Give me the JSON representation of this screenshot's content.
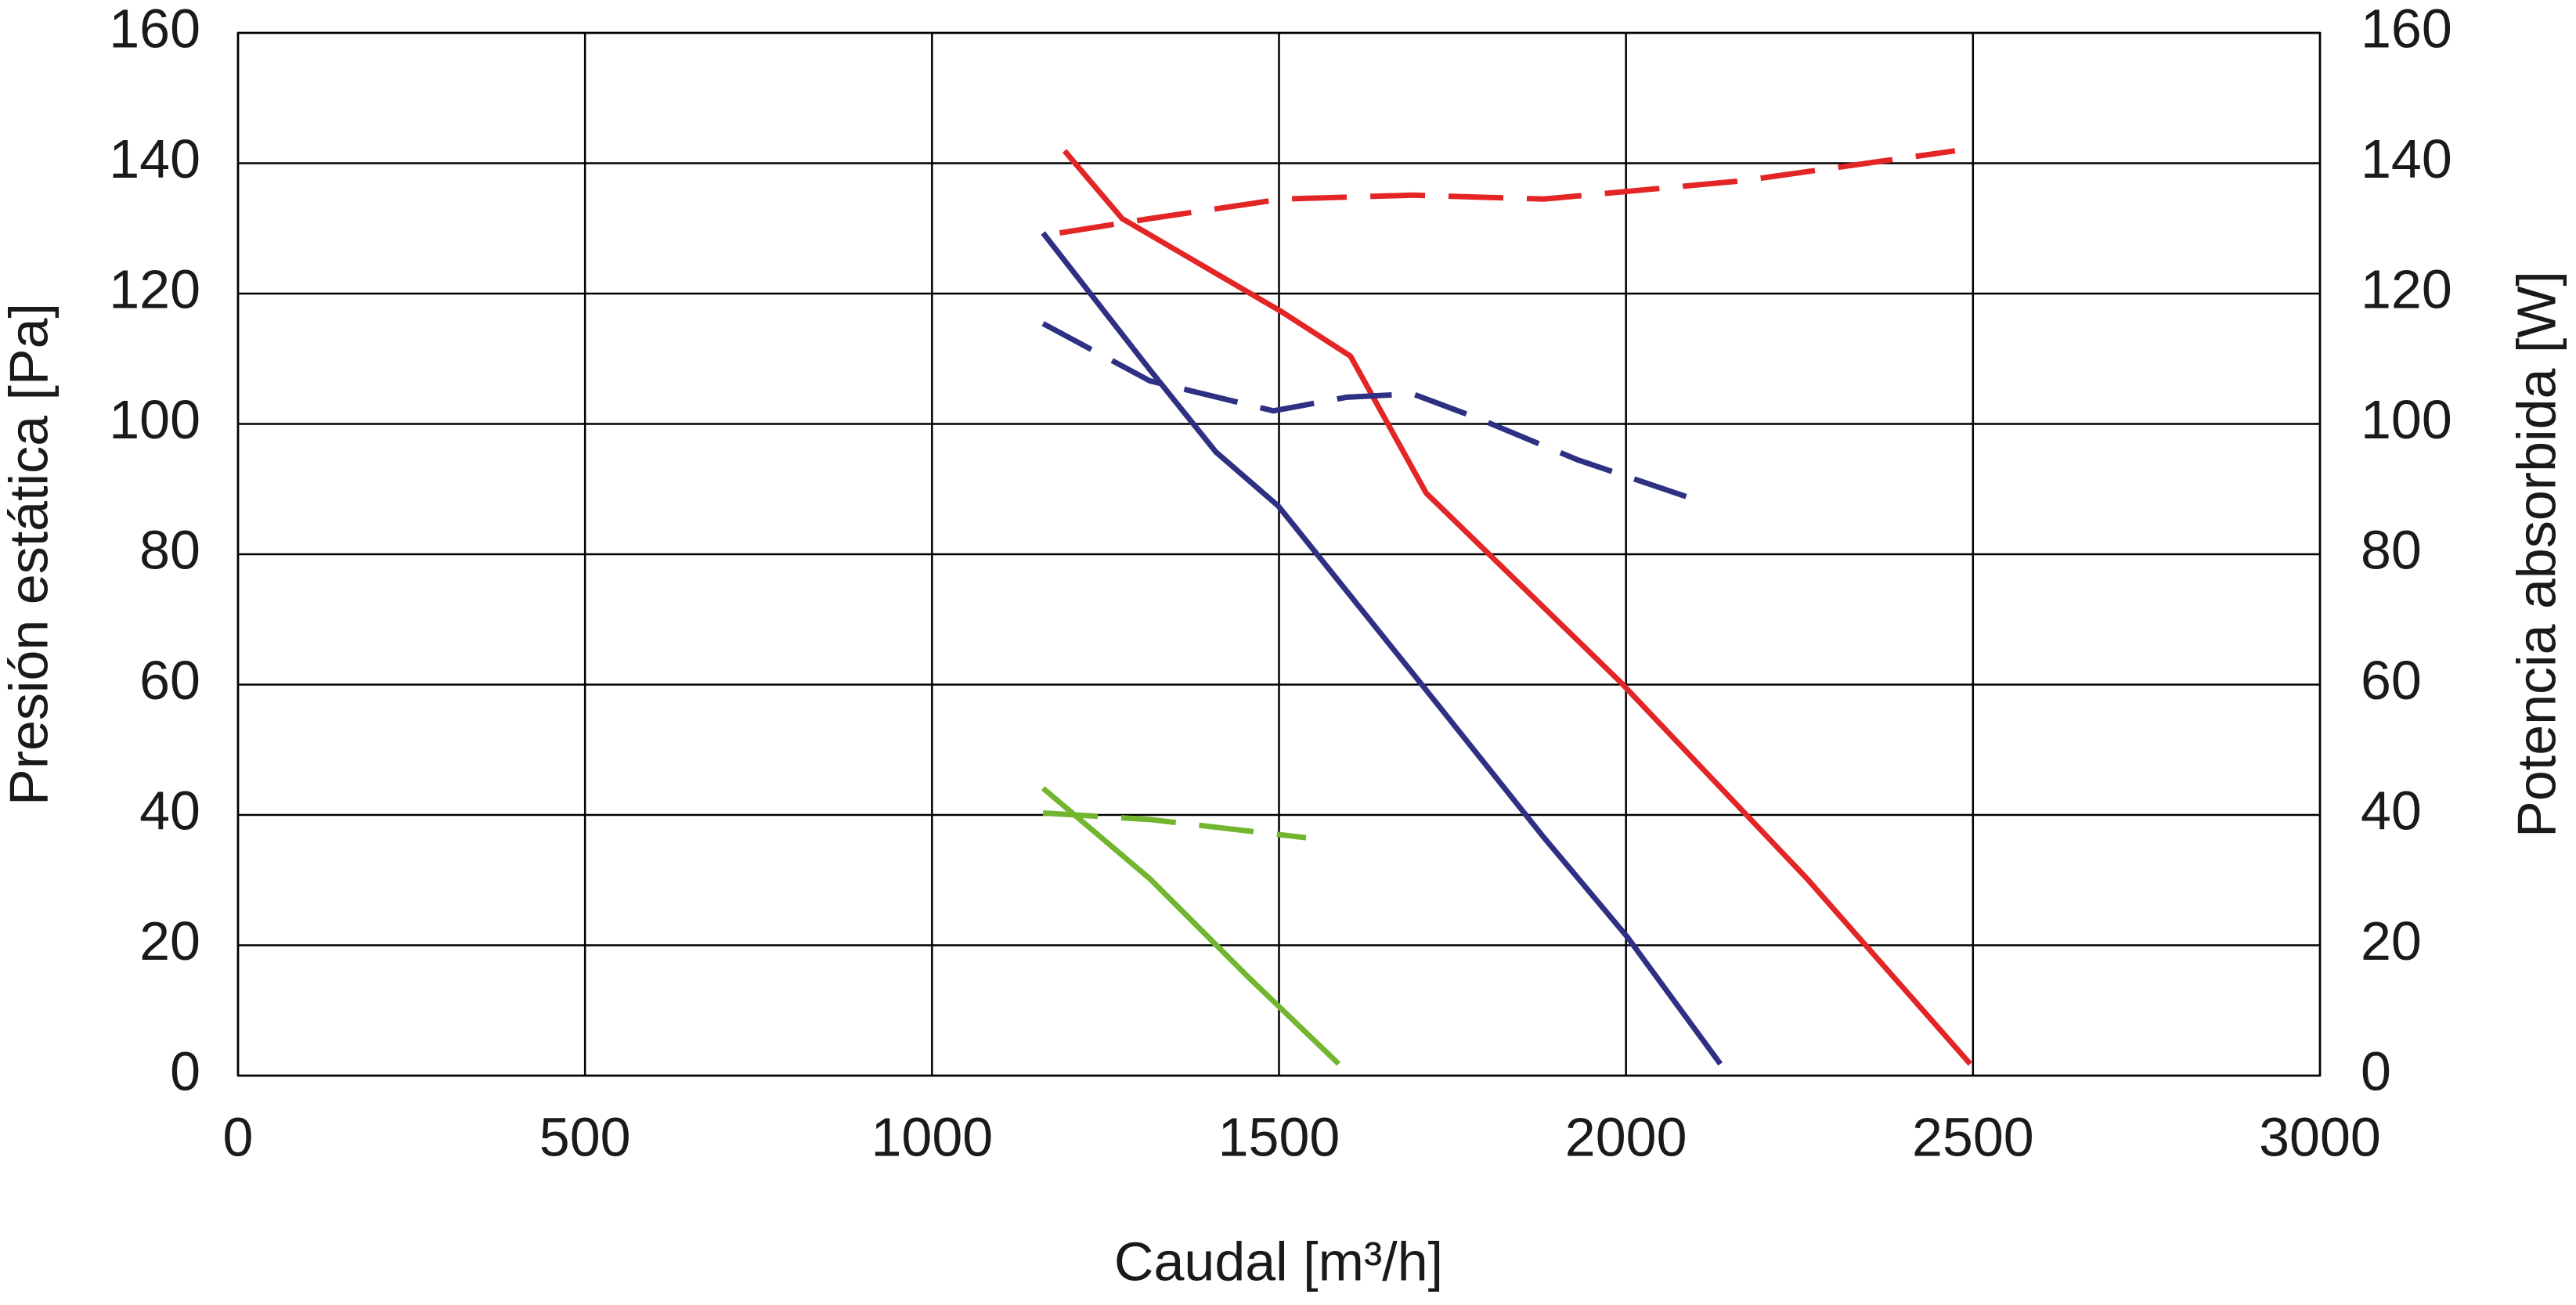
{
  "chart_data": {
    "type": "line",
    "xlabel": "Caudal [m³/h]",
    "ylabel": "Presión  estática [Pa]",
    "y2label": "Potencia absorbida [W]",
    "xlim": [
      0,
      3000
    ],
    "xticks": [
      0,
      500,
      1000,
      1500,
      2000,
      2500,
      3000
    ],
    "ylim": [
      0,
      160
    ],
    "yticks": [
      0,
      20,
      40,
      60,
      80,
      100,
      120,
      140,
      160
    ],
    "y2lim": [
      0,
      160
    ],
    "y2ticks": [
      0,
      20,
      40,
      60,
      80,
      100,
      120,
      140,
      160
    ],
    "grid": true,
    "series": [
      {
        "color": "#e32526",
        "dash": false,
        "x": [
          1191,
          1274,
          1504,
          1603,
          1712,
          1991,
          2261,
          2496
        ],
        "values": [
          141.9,
          131.5,
          117.2,
          110.4,
          89.4,
          60.5,
          30.2,
          1.8
        ]
      },
      {
        "color": "#2e3083",
        "dash": false,
        "x": [
          1160,
          1314,
          1409,
          1499,
          1693,
          1882,
          2001,
          2136
        ],
        "values": [
          129.3,
          108.3,
          95.7,
          87.4,
          61.7,
          36.5,
          21.4,
          1.8
        ]
      },
      {
        "color": "#72b62f",
        "dash": false,
        "x": [
          1160,
          1314,
          1456,
          1586
        ],
        "values": [
          44.1,
          30.2,
          15.1,
          1.8
        ]
      },
      {
        "color": "#e32526",
        "dash": true,
        "axis": "y2",
        "x": [
          1184,
          1314,
          1504,
          1693,
          1882,
          2167,
          2474
        ],
        "values": [
          129.3,
          131.5,
          134.5,
          135.1,
          134.5,
          137.3,
          141.9
        ]
      },
      {
        "color": "#2e3083",
        "dash": true,
        "axis": "y2",
        "x": [
          1160,
          1314,
          1492,
          1598,
          1693,
          1788,
          1930,
          2091
        ],
        "values": [
          115.4,
          106.6,
          102.0,
          104.1,
          104.6,
          100.8,
          94.5,
          88.7
        ]
      },
      {
        "color": "#72b62f",
        "dash": true,
        "axis": "y2",
        "x": [
          1160,
          1314,
          1539
        ],
        "values": [
          40.3,
          39.3,
          36.5
        ]
      }
    ]
  }
}
